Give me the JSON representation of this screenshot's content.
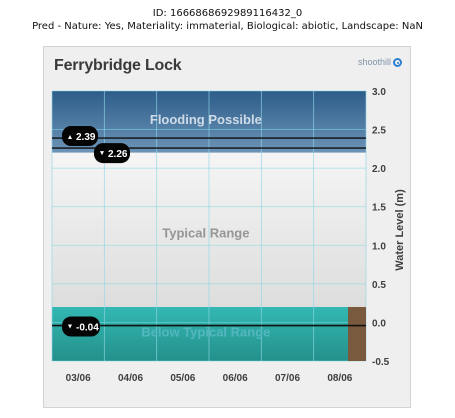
{
  "header": {
    "id": "ID: 1666868692989116432_0",
    "pred": "Pred - Nature: Yes, Materiality: immaterial, Biological: abiotic, Landscape: NaN"
  },
  "brand": {
    "title": "Ferrybridge Lock",
    "logo_text": "shoothill",
    "logo_icon": "target-icon",
    "accent_color": "#2f7fd1"
  },
  "chart_data": {
    "type": "area",
    "title": "Ferrybridge Lock",
    "ylabel": "Water Level (m)",
    "ylim": [
      -0.5,
      3.0
    ],
    "yticks": [
      3.0,
      2.5,
      2.0,
      1.5,
      1.0,
      0.5,
      0.0,
      -0.5
    ],
    "ytick_labels": [
      "3.0",
      "2.5",
      "2.0",
      "1.5",
      "1.0",
      "0.5",
      "0.0",
      "-0.5"
    ],
    "x_categories": [
      "03/06",
      "04/06",
      "05/06",
      "06/06",
      "07/06",
      "08/06"
    ],
    "grid": true,
    "bands": [
      {
        "name": "Flooding Possible",
        "from": 2.2,
        "to": 3.0,
        "color": "#4f7fa8"
      },
      {
        "name": "Typical Range",
        "from": 0.2,
        "to": 2.2,
        "color": "#e6e6e6"
      },
      {
        "name": "Below Typical Range",
        "from": -0.5,
        "to": 0.2,
        "color": "#2da7a4"
      }
    ],
    "levels": [
      {
        "label": "2.39",
        "value": 2.39,
        "icon": "arrow-up-icon"
      },
      {
        "label": "2.26",
        "value": 2.26,
        "icon": "arrow-down-icon"
      },
      {
        "label": "-0.04",
        "value": -0.04,
        "icon": "arrow-down-icon"
      }
    ],
    "forecast_band_color": "#7a5a3e"
  }
}
